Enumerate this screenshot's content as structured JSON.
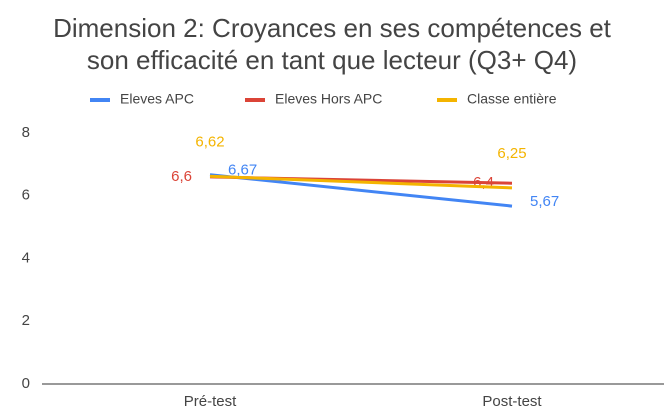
{
  "chart_data": {
    "type": "line",
    "title": [
      "Dimension 2: Croyances en ses compétences et",
      "son efficacité en tant que lecteur (Q3+ Q4)"
    ],
    "categories": [
      "Pré-test",
      "Post-test"
    ],
    "series": [
      {
        "name": "Eleves APC",
        "color": "#4285f4",
        "values": [
          6.67,
          5.67
        ],
        "value_labels": [
          "6,67",
          "5,67"
        ]
      },
      {
        "name": "Eleves Hors APC",
        "color": "#db4437",
        "values": [
          6.6,
          6.4
        ],
        "value_labels": [
          "6,6",
          "6,4"
        ]
      },
      {
        "name": "Classe entière",
        "color": "#f4b400",
        "values": [
          6.62,
          6.25
        ],
        "value_labels": [
          "6,62",
          "6,25"
        ]
      }
    ],
    "ylim": [
      0,
      8
    ],
    "yticks": [
      0,
      2,
      4,
      6,
      8
    ],
    "grid": false,
    "legend": "top"
  }
}
